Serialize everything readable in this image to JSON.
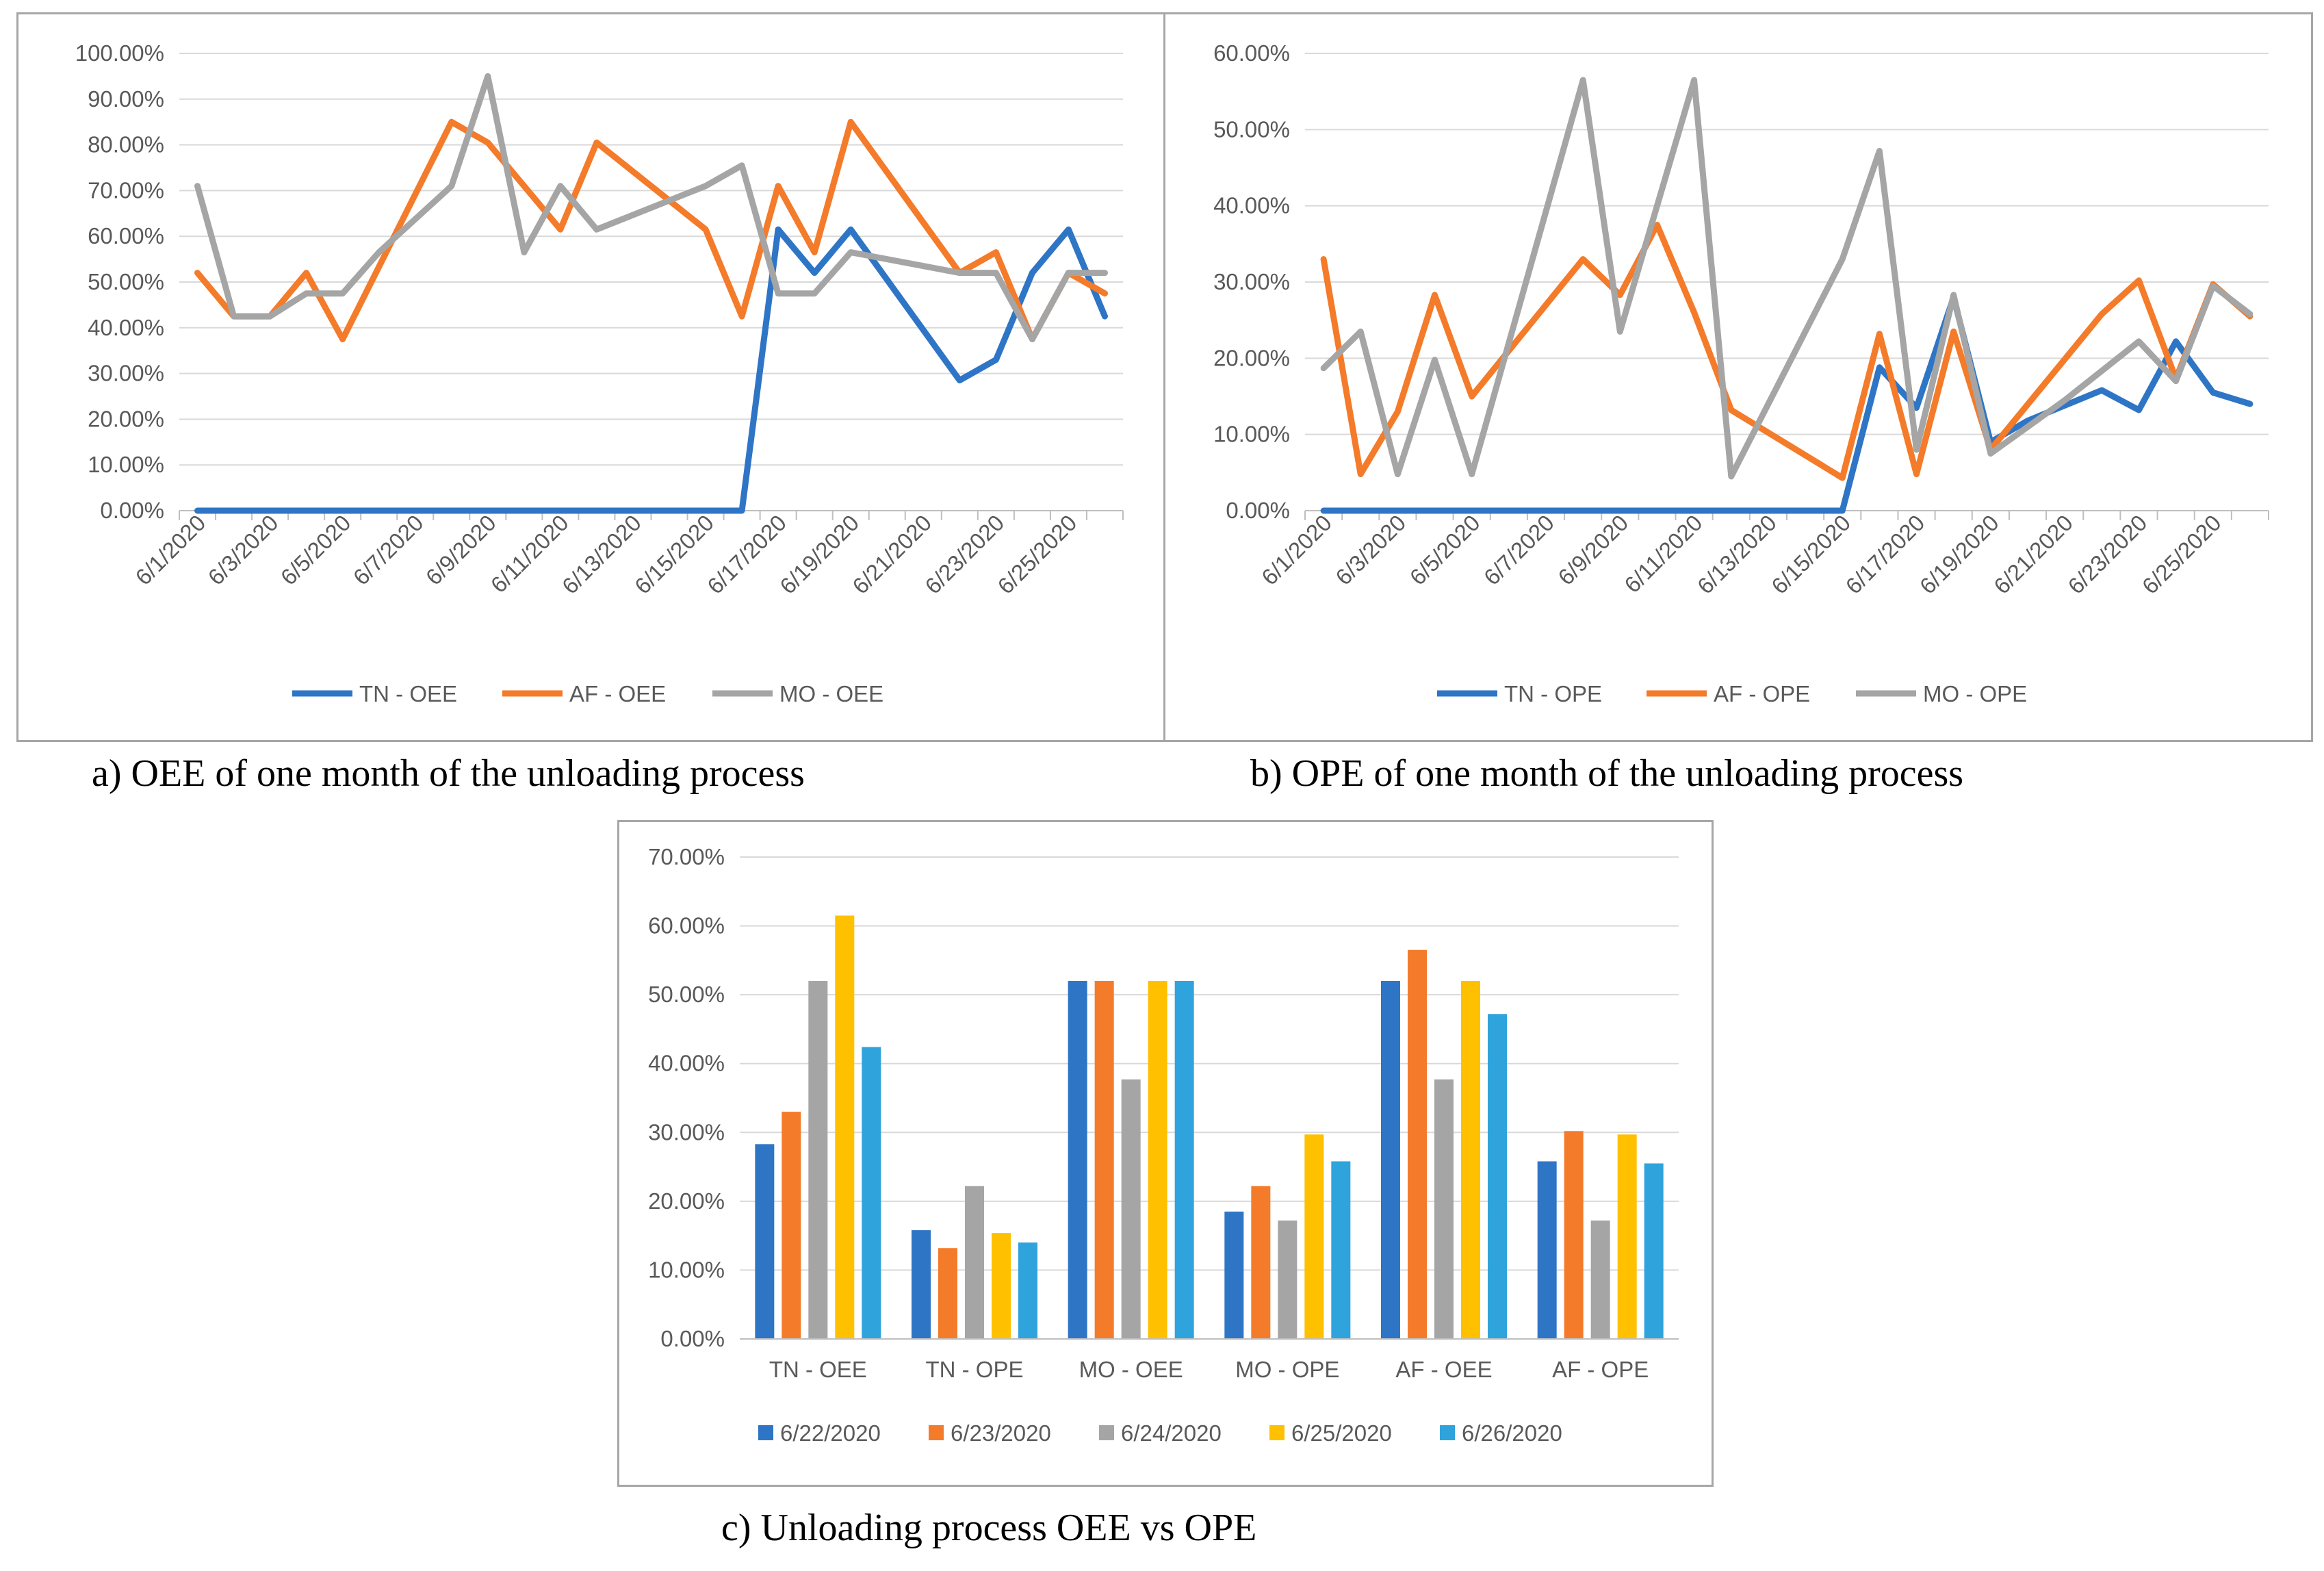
{
  "captions": {
    "a": "a) OEE of one month of the unloading process",
    "b": "b) OPE of one month of the unloading process",
    "c": "c) Unloading process OEE vs OPE"
  },
  "colors": {
    "blue": "#2e75c6",
    "orange": "#f47b2a",
    "gray": "#a5a5a5",
    "yellow": "#ffc000",
    "lightblue": "#2fa3dc",
    "grid": "#d9d9d9",
    "axis_text": "#595959"
  },
  "chart_data": [
    {
      "type": "line",
      "x": [
        "6/1/2020",
        "6/2/2020",
        "6/3/2020",
        "6/4/2020",
        "6/5/2020",
        "6/6/2020",
        "6/7/2020",
        "6/8/2020",
        "6/9/2020",
        "6/10/2020",
        "6/11/2020",
        "6/12/2020",
        "6/13/2020",
        "6/14/2020",
        "6/15/2020",
        "6/16/2020",
        "6/17/2020",
        "6/18/2020",
        "6/19/2020",
        "6/20/2020",
        "6/21/2020",
        "6/22/2020",
        "6/23/2020",
        "6/24/2020",
        "6/25/2020",
        "6/26/2020"
      ],
      "x_ticks": [
        "6/1/2020",
        "6/3/2020",
        "6/5/2020",
        "6/7/2020",
        "6/9/2020",
        "6/11/2020",
        "6/13/2020",
        "6/15/2020",
        "6/17/2020",
        "6/19/2020",
        "6/21/2020",
        "6/23/2020",
        "6/25/2020"
      ],
      "y_ticks": [
        "0.00%",
        "10.00%",
        "20.00%",
        "30.00%",
        "40.00%",
        "50.00%",
        "60.00%",
        "70.00%",
        "80.00%",
        "90.00%",
        "100.00%"
      ],
      "ylim": [
        0,
        100
      ],
      "series": [
        {
          "name": "TN - OEE",
          "color": "#2e75c6",
          "points": [
            [
              0,
              0
            ],
            [
              14,
              0
            ],
            [
              15,
              0
            ],
            [
              16,
              61.5
            ],
            [
              17,
              52
            ],
            [
              18,
              61.5
            ],
            [
              21,
              28.5
            ],
            [
              22,
              33
            ],
            [
              23,
              52
            ],
            [
              24,
              61.5
            ],
            [
              25,
              42.5
            ]
          ]
        },
        {
          "name": "AF - OEE",
          "color": "#f47b2a",
          "points": [
            [
              0,
              52
            ],
            [
              1,
              42.5
            ],
            [
              2,
              42.5
            ],
            [
              3,
              52
            ],
            [
              4,
              37.5
            ],
            [
              7,
              85
            ],
            [
              8,
              80.5
            ],
            [
              10,
              61.5
            ],
            [
              11,
              80.5
            ],
            [
              14,
              61.5
            ],
            [
              15,
              42.5
            ],
            [
              16,
              71
            ],
            [
              17,
              56.5
            ],
            [
              18,
              85
            ],
            [
              21,
              52
            ],
            [
              22,
              56.5
            ],
            [
              23,
              37.5
            ],
            [
              24,
              52
            ],
            [
              25,
              47.5
            ]
          ]
        },
        {
          "name": "MO - OEE",
          "color": "#a5a5a5",
          "points": [
            [
              0,
              71
            ],
            [
              1,
              42.5
            ],
            [
              2,
              42.5
            ],
            [
              3,
              47.5
            ],
            [
              4,
              47.5
            ],
            [
              5,
              56.5
            ],
            [
              7,
              71
            ],
            [
              8,
              95
            ],
            [
              9,
              56.5
            ],
            [
              10,
              71
            ],
            [
              11,
              61.5
            ],
            [
              14,
              71
            ],
            [
              15,
              75.5
            ],
            [
              16,
              47.5
            ],
            [
              17,
              47.5
            ],
            [
              18,
              56.5
            ],
            [
              21,
              52
            ],
            [
              22,
              52
            ],
            [
              23,
              37.5
            ],
            [
              24,
              52
            ],
            [
              25,
              52
            ]
          ]
        }
      ],
      "legend": [
        "TN - OEE",
        "AF - OEE",
        "MO - OEE"
      ],
      "legend_position": "bottom"
    },
    {
      "type": "line",
      "x": [
        "6/1/2020",
        "6/2/2020",
        "6/3/2020",
        "6/4/2020",
        "6/5/2020",
        "6/6/2020",
        "6/7/2020",
        "6/8/2020",
        "6/9/2020",
        "6/10/2020",
        "6/11/2020",
        "6/12/2020",
        "6/13/2020",
        "6/14/2020",
        "6/15/2020",
        "6/16/2020",
        "6/17/2020",
        "6/18/2020",
        "6/19/2020",
        "6/20/2020",
        "6/21/2020",
        "6/22/2020",
        "6/23/2020",
        "6/24/2020",
        "6/25/2020",
        "6/26/2020"
      ],
      "x_ticks": [
        "6/1/2020",
        "6/3/2020",
        "6/5/2020",
        "6/7/2020",
        "6/9/2020",
        "6/11/2020",
        "6/13/2020",
        "6/15/2020",
        "6/17/2020",
        "6/19/2020",
        "6/21/2020",
        "6/23/2020",
        "6/25/2020"
      ],
      "y_ticks": [
        "0.00%",
        "10.00%",
        "20.00%",
        "30.00%",
        "40.00%",
        "50.00%",
        "60.00%"
      ],
      "ylim": [
        0,
        60
      ],
      "series": [
        {
          "name": "TN - OPE",
          "color": "#2e75c6",
          "points": [
            [
              0,
              0
            ],
            [
              14,
              0
            ],
            [
              15,
              18.8
            ],
            [
              16,
              13.5
            ],
            [
              17,
              28
            ],
            [
              18,
              9
            ],
            [
              19,
              11.8
            ],
            [
              21,
              15.8
            ],
            [
              22,
              13.2
            ],
            [
              23,
              22.2
            ],
            [
              24,
              15.5
            ],
            [
              25,
              14
            ]
          ]
        },
        {
          "name": "AF - OPE",
          "color": "#f47b2a",
          "points": [
            [
              0,
              33
            ],
            [
              1,
              4.8
            ],
            [
              2,
              13
            ],
            [
              3,
              28.3
            ],
            [
              4,
              15
            ],
            [
              7,
              33
            ],
            [
              8,
              28.3
            ],
            [
              9,
              37.5
            ],
            [
              10,
              26
            ],
            [
              11,
              13.2
            ],
            [
              14,
              4.3
            ],
            [
              15,
              23.2
            ],
            [
              16,
              4.8
            ],
            [
              17,
              23.5
            ],
            [
              18,
              8
            ],
            [
              21,
              25.8
            ],
            [
              22,
              30.2
            ],
            [
              23,
              17.3
            ],
            [
              24,
              29.7
            ],
            [
              25,
              25.5
            ]
          ]
        },
        {
          "name": "MO - OPE",
          "color": "#a5a5a5",
          "points": [
            [
              0,
              18.7
            ],
            [
              1,
              23.5
            ],
            [
              2,
              4.8
            ],
            [
              3,
              19.8
            ],
            [
              4,
              4.8
            ],
            [
              7,
              56.5
            ],
            [
              8,
              23.5
            ],
            [
              10,
              56.5
            ],
            [
              11,
              4.5
            ],
            [
              14,
              33
            ],
            [
              15,
              47.2
            ],
            [
              16,
              8
            ],
            [
              17,
              28.3
            ],
            [
              18,
              7.5
            ],
            [
              20,
              14.5
            ],
            [
              22,
              22.2
            ],
            [
              23,
              17
            ],
            [
              24,
              29.5
            ],
            [
              25,
              25.8
            ]
          ]
        }
      ],
      "legend": [
        "TN - OPE",
        "AF - OPE",
        "MO - OPE"
      ],
      "legend_position": "bottom"
    },
    {
      "type": "bar",
      "categories": [
        "TN - OEE",
        "TN - OPE",
        "MO - OEE",
        "MO - OPE",
        "AF - OEE",
        "AF - OPE"
      ],
      "y_ticks": [
        "0.00%",
        "10.00%",
        "20.00%",
        "30.00%",
        "40.00%",
        "50.00%",
        "60.00%",
        "70.00%"
      ],
      "ylim": [
        0,
        70
      ],
      "series": [
        {
          "name": "6/22/2020",
          "color": "#2e75c6",
          "values": [
            28.3,
            15.8,
            52,
            18.5,
            52,
            25.8
          ]
        },
        {
          "name": "6/23/2020",
          "color": "#f47b2a",
          "values": [
            33,
            13.2,
            52,
            22.2,
            56.5,
            30.2
          ]
        },
        {
          "name": "6/24/2020",
          "color": "#a5a5a5",
          "values": [
            52,
            22.2,
            37.7,
            17.2,
            37.7,
            17.2
          ]
        },
        {
          "name": "6/25/2020",
          "color": "#ffc000",
          "values": [
            61.5,
            15.4,
            52,
            29.7,
            52,
            29.7
          ]
        },
        {
          "name": "6/26/2020",
          "color": "#2fa3dc",
          "values": [
            42.4,
            14,
            52,
            25.8,
            47.2,
            25.5
          ]
        }
      ],
      "legend_position": "bottom"
    }
  ]
}
